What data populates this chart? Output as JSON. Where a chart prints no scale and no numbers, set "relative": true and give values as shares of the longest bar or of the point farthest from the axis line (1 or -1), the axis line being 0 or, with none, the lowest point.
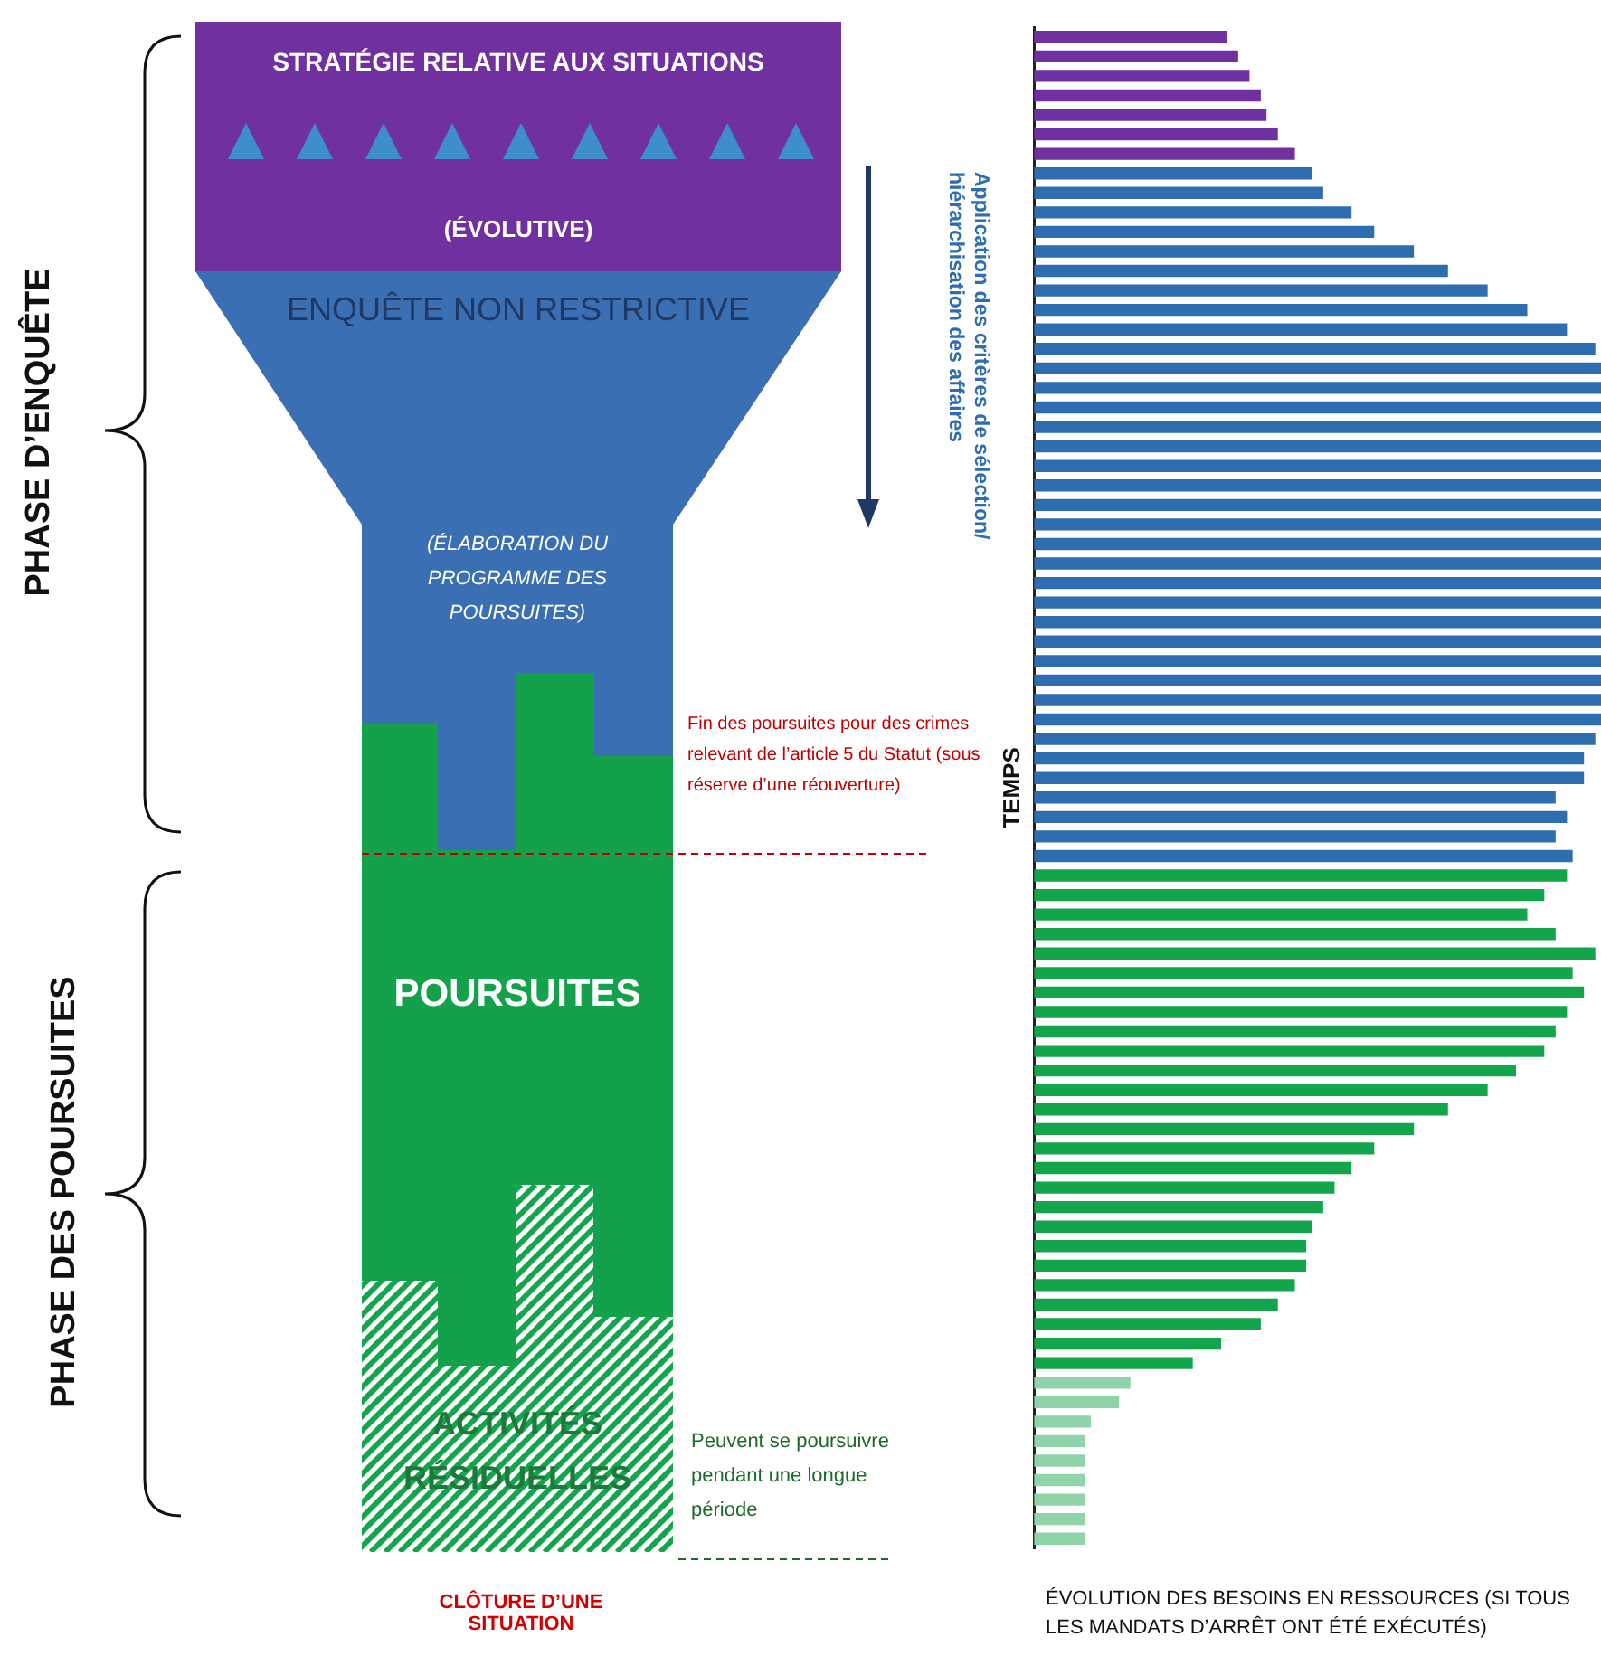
{
  "chart_data": [
    {
      "type": "other",
      "annotations": [
        "STRATÉGIE RELATIVE AUX SITUATIONS",
        "(ÉVOLUTIVE)",
        "ENQUÊTE NON RESTRICTIVE",
        "(ÉLABORATION DU PROGRAMME DES POURSUITES)",
        "Fin des poursuites pour des crimes relevant de l’article 5 du Statut (sous réserve d’une réouverture)",
        "POURSUITES",
        "ACTIVITÉS RÉSIDUELLES",
        "Peuvent se poursuivre pendant une longue période",
        "CLÔTURE D’UNE SITUATION",
        "PHASE D’ENQUÊTE",
        "PHASE DES POURSUITES",
        "Application des critères de sélection/ hiérarchisation des affaires"
      ]
    },
    {
      "type": "bar",
      "orientation": "horizontal",
      "relative": true,
      "ylabel": "TEMPS",
      "xlabel": "ÉVOLUTION DES BESOINS EN RESSOURCES (SI TOUS LES MANDATS D’ARRÊT ONT ÉTÉ EXÉCUTÉS)",
      "categories": [
        null,
        null,
        null,
        null,
        null,
        null,
        null,
        null,
        null,
        null,
        null,
        null,
        null,
        null,
        null,
        null,
        null,
        null,
        null,
        null,
        null,
        null,
        null,
        null,
        null,
        null,
        null,
        null,
        null,
        null,
        null,
        null,
        null,
        null,
        null,
        null,
        null,
        null,
        null,
        null,
        null,
        null,
        null,
        null,
        null,
        null,
        null,
        null,
        null,
        null,
        null,
        null,
        null,
        null,
        null,
        null,
        null,
        null,
        null,
        null,
        null,
        null,
        null,
        null,
        null,
        null,
        null,
        null,
        null,
        null,
        null,
        null,
        null,
        null,
        null,
        null,
        null,
        null
      ],
      "values": [
        0.34,
        0.36,
        0.38,
        0.4,
        0.41,
        0.43,
        0.46,
        0.49,
        0.51,
        0.56,
        0.6,
        0.67,
        0.73,
        0.8,
        0.87,
        0.94,
        0.99,
        1,
        1,
        1,
        1,
        1,
        1,
        1,
        1,
        1,
        1,
        1,
        1,
        1,
        1,
        1,
        1,
        1,
        1,
        1,
        0.99,
        0.97,
        0.97,
        0.92,
        0.94,
        0.92,
        0.95,
        0.94,
        0.9,
        0.87,
        0.92,
        0.99,
        0.95,
        0.97,
        0.94,
        0.92,
        0.9,
        0.85,
        0.8,
        0.73,
        0.67,
        0.6,
        0.56,
        0.53,
        0.51,
        0.49,
        0.48,
        0.48,
        0.46,
        0.43,
        0.4,
        0.33,
        0.28,
        0.17,
        0.15,
        0.1,
        0.09,
        0.09,
        0.09,
        0.09,
        0.09,
        0.09
      ],
      "colors": [
        "#7030a0",
        "#7030a0",
        "#7030a0",
        "#7030a0",
        "#7030a0",
        "#7030a0",
        "#7030a0",
        "#2e6db0",
        "#2e6db0",
        "#2e6db0",
        "#2e6db0",
        "#2e6db0",
        "#2e6db0",
        "#2e6db0",
        "#2e6db0",
        "#2e6db0",
        "#2e6db0",
        "#2e6db0",
        "#2e6db0",
        "#2e6db0",
        "#2e6db0",
        "#2e6db0",
        "#2e6db0",
        "#2e6db0",
        "#2e6db0",
        "#2e6db0",
        "#2e6db0",
        "#2e6db0",
        "#2e6db0",
        "#2e6db0",
        "#2e6db0",
        "#2e6db0",
        "#2e6db0",
        "#2e6db0",
        "#2e6db0",
        "#2e6db0",
        "#2e6db0",
        "#2e6db0",
        "#2e6db0",
        "#2e6db0",
        "#2e6db0",
        "#2e6db0",
        "#2e6db0",
        "#12a54c",
        "#12a54c",
        "#12a54c",
        "#12a54c",
        "#12a54c",
        "#12a54c",
        "#12a54c",
        "#12a54c",
        "#12a54c",
        "#12a54c",
        "#12a54c",
        "#12a54c",
        "#12a54c",
        "#12a54c",
        "#12a54c",
        "#12a54c",
        "#12a54c",
        "#12a54c",
        "#12a54c",
        "#12a54c",
        "#12a54c",
        "#12a54c",
        "#12a54c",
        "#12a54c",
        "#12a54c",
        "#12a54c",
        "#8fd4a8",
        "#8fd4a8",
        "#8fd4a8",
        "#8fd4a8",
        "#8fd4a8",
        "#8fd4a8",
        "#8fd4a8",
        "#8fd4a8",
        "#8fd4a8"
      ]
    }
  ]
}
